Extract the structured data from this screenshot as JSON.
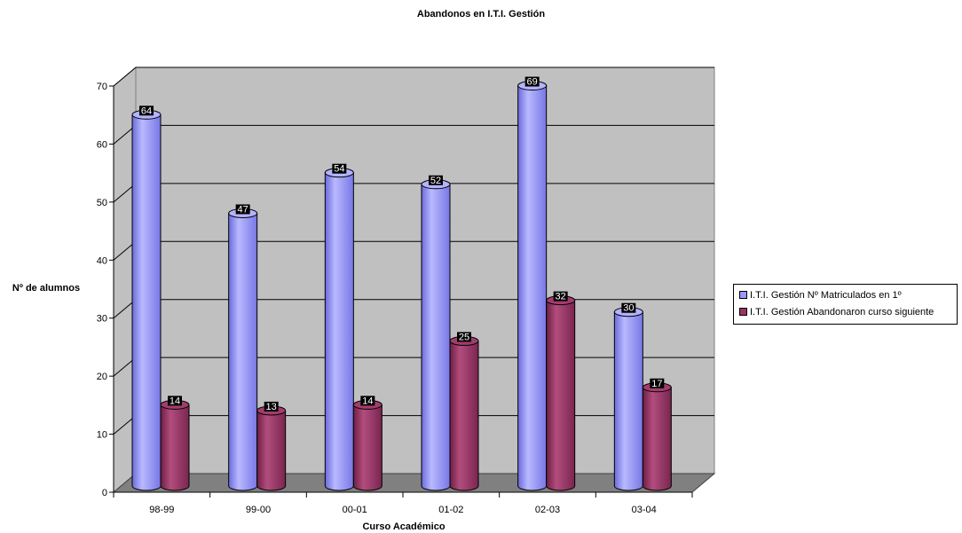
{
  "chart_data": {
    "type": "bar",
    "title": "Abandonos en I.T.I. Gestión",
    "xlabel": "Curso Académico",
    "ylabel": "Nº de alumnos",
    "categories": [
      "98-99",
      "99-00",
      "00-01",
      "01-02",
      "02-03",
      "03-04"
    ],
    "ylim": [
      0,
      70
    ],
    "yticks": [
      "0",
      "10",
      "20",
      "30",
      "40",
      "50",
      "60",
      "70"
    ],
    "grid": true,
    "legend_position": "right",
    "series": [
      {
        "name": "I.T.I. Gestión Nº Matriculados en 1º",
        "values": [
          64,
          47,
          54,
          52,
          69,
          30
        ],
        "color": "#9999ff"
      },
      {
        "name": "I.T.I. Gestión Abandonaron curso siguiente",
        "values": [
          14,
          13,
          14,
          25,
          32,
          17
        ],
        "color": "#993366"
      }
    ],
    "value_labels": true
  }
}
